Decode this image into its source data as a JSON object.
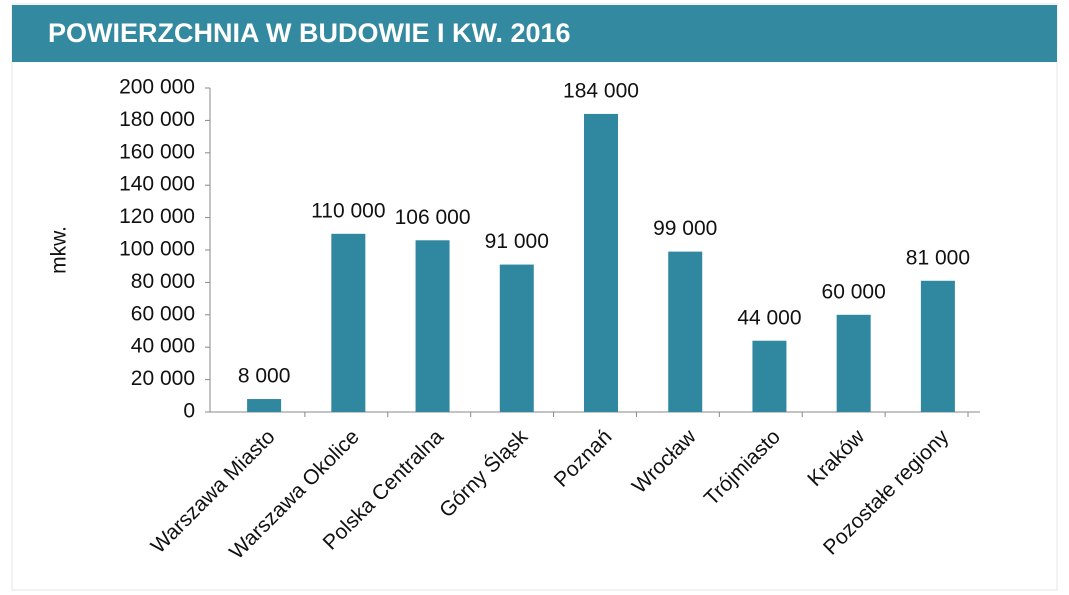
{
  "chart_data": {
    "type": "bar",
    "title": "POWIERZCHNIA W BUDOWIE I KW. 2016",
    "y_label": "mkw.",
    "categories": [
      "Warszawa Miasto",
      "Warszawa Okolice",
      "Polska Centralna",
      "Górny Śląsk",
      "Poznań",
      "Wrocław",
      "Trójmiasto",
      "Kraków",
      "Pozostałe regiony"
    ],
    "values": [
      8000,
      110000,
      106000,
      91000,
      184000,
      99000,
      44000,
      60000,
      81000
    ],
    "value_labels": [
      "8 000",
      "110 000",
      "106 000",
      "91 000",
      "184 000",
      "99 000",
      "44 000",
      "60 000",
      "81 000"
    ],
    "color": "#2f87a0",
    "ylim": [
      0,
      200000
    ],
    "yticks": [
      0,
      {
        "value": 20000,
        "label": "20 000"
      },
      {
        "value": 40000,
        "label": "40 000"
      },
      {
        "value": 60000,
        "label": "60 000"
      },
      {
        "value": 80000,
        "label": "80 000"
      },
      {
        "value": 100000,
        "label": "100 000"
      },
      {
        "value": 120000,
        "label": "120 000"
      },
      {
        "value": 140000,
        "label": "140 000"
      },
      {
        "value": 160000,
        "label": "160 000"
      },
      {
        "value": 180000,
        "label": "180 000"
      },
      {
        "value": 200000,
        "label": "200 000"
      }
    ],
    "grid": false
  }
}
